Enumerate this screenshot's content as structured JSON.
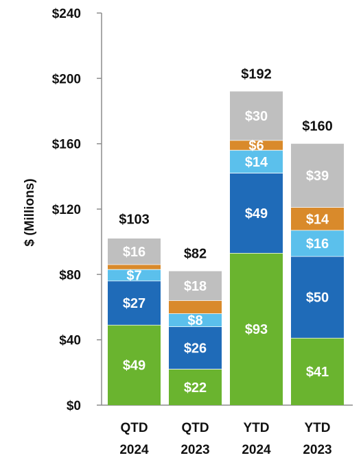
{
  "chart_data": {
    "type": "bar",
    "stacked": true,
    "categories": [
      [
        "QTD",
        "2024"
      ],
      [
        "QTD",
        "2023"
      ],
      [
        "YTD",
        "2024"
      ],
      [
        "YTD",
        "2023"
      ]
    ],
    "ylabel": "$ (Millions)",
    "xlabel": "",
    "ylim": [
      0,
      240
    ],
    "yticks": [
      0,
      40,
      80,
      120,
      160,
      200,
      240
    ],
    "ytick_labels": [
      "$0",
      "$40",
      "$80",
      "$120",
      "$160",
      "$200",
      "$240"
    ],
    "grid": false,
    "series": [
      {
        "values": [
          49,
          22,
          93,
          41
        ],
        "labels": [
          "$49",
          "$22",
          "$93",
          "$41"
        ],
        "color": "#6ab42f"
      },
      {
        "values": [
          27,
          26,
          49,
          50
        ],
        "labels": [
          "$27",
          "$26",
          "$49",
          "$50"
        ],
        "color": "#1f6bb8"
      },
      {
        "values": [
          7,
          8,
          14,
          16
        ],
        "labels": [
          "$7",
          "$8",
          "$14",
          "$16"
        ],
        "color": "#5bc0ec"
      },
      {
        "values": [
          3,
          8,
          6,
          14
        ],
        "labels": [
          "",
          "",
          "$6",
          "$14"
        ],
        "color": "#d98a2b"
      },
      {
        "values": [
          16,
          18,
          30,
          39
        ],
        "labels": [
          "$16",
          "$18",
          "$30",
          "$39"
        ],
        "color": "#bfbfbf"
      }
    ],
    "totals": [
      103,
      82,
      192,
      160
    ],
    "total_labels": [
      "$103",
      "$82",
      "$192",
      "$160"
    ]
  }
}
